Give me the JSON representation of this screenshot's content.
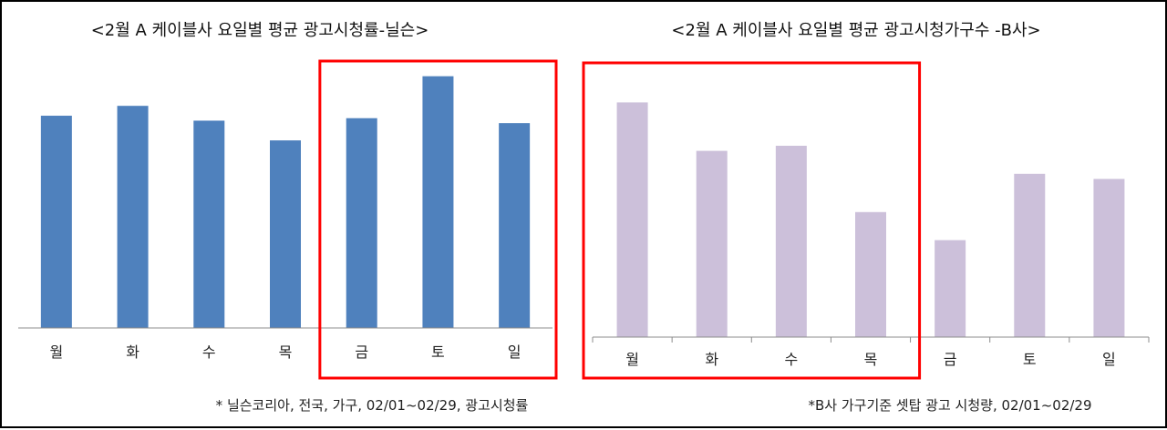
{
  "chart_data": [
    {
      "type": "bar",
      "title": "<2월 A 케이블사 요일별 평균 광고시청률-닐슨>",
      "categories": [
        "월",
        "화",
        "수",
        "목",
        "금",
        "토",
        "일"
      ],
      "values": [
        86,
        90,
        84,
        76,
        85,
        102,
        83
      ],
      "ylim": [
        0,
        110
      ],
      "grid": false,
      "bar_color": "#4f81bd",
      "highlight": {
        "categories": [
          "금",
          "토",
          "일"
        ],
        "color": "#ff0000"
      },
      "footnote": "* 닐슨코리아, 전국, 가구, 02/01~02/29, 광고시청률"
    },
    {
      "type": "bar",
      "title": "<2월 A 케이블사 요일별 평균 광고시청가구수 -B사>",
      "categories": [
        "월",
        "화",
        "수",
        "목",
        "금",
        "토",
        "일"
      ],
      "values": [
        92,
        73,
        75,
        49,
        38,
        64,
        62
      ],
      "ylim": [
        0,
        110
      ],
      "grid": false,
      "bar_color": "#ccc0da",
      "highlight": {
        "categories": [
          "월",
          "화",
          "수",
          "목"
        ],
        "color": "#ff0000"
      },
      "footnote": "*B사  가구기준 셋탑 광고 시청량, 02/01~02/29"
    }
  ]
}
